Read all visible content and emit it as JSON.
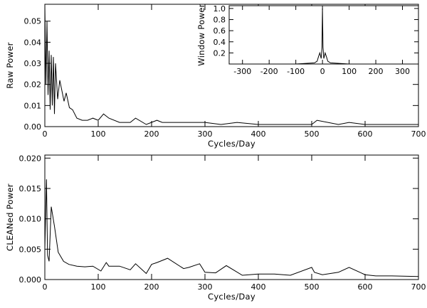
{
  "chart_data": [
    {
      "id": "top",
      "type": "line",
      "xlabel": "Cycles/Day",
      "ylabel": "Raw Power",
      "xlim": [
        0,
        700
      ],
      "ylim": [
        0,
        0.058
      ],
      "xticks": [
        0,
        100,
        200,
        300,
        400,
        500,
        600,
        700
      ],
      "yticks": [
        0.0,
        0.01,
        0.02,
        0.03,
        0.04,
        0.05
      ],
      "ytick_labels": [
        "0.00",
        "0.01",
        "0.02",
        "0.03",
        "0.04",
        "0.05"
      ],
      "series": [
        {
          "x": [
            0,
            2,
            4,
            6,
            8,
            10,
            12,
            14,
            16,
            18,
            20,
            24,
            28,
            32,
            36,
            40,
            46,
            52,
            60,
            70,
            80,
            90,
            100,
            110,
            120,
            140,
            160,
            170,
            190,
            210,
            220,
            250,
            280,
            300,
            330,
            360,
            400,
            450,
            500,
            510,
            550,
            570,
            600,
            650,
            700
          ],
          "y": [
            0.058,
            0.02,
            0.05,
            0.015,
            0.036,
            0.008,
            0.034,
            0.01,
            0.033,
            0.006,
            0.03,
            0.013,
            0.022,
            0.017,
            0.012,
            0.016,
            0.009,
            0.008,
            0.004,
            0.003,
            0.003,
            0.004,
            0.003,
            0.006,
            0.004,
            0.002,
            0.002,
            0.004,
            0.001,
            0.003,
            0.002,
            0.002,
            0.002,
            0.002,
            0.001,
            0.002,
            0.001,
            0.001,
            0.001,
            0.003,
            0.001,
            0.002,
            0.001,
            0.001,
            0.001
          ]
        }
      ]
    },
    {
      "id": "inset",
      "type": "line",
      "ylabel": "Window Power",
      "xlim": [
        -350,
        360
      ],
      "ylim": [
        0,
        1.05
      ],
      "xticks": [
        -300,
        -200,
        -100,
        0,
        100,
        200,
        300
      ],
      "xtick_labels": [
        "-300",
        "-200",
        "-100",
        "0",
        "100",
        "200",
        "300"
      ],
      "yticks": [
        0.2,
        0.4,
        0.6,
        0.8,
        1.0
      ],
      "ytick_labels": [
        "0.2",
        "0.4",
        "0.6",
        "0.8",
        "1.0"
      ],
      "series": [
        {
          "x": [
            -350,
            -100,
            -30,
            -20,
            -15,
            -10,
            -5,
            -2,
            0,
            2,
            5,
            10,
            15,
            20,
            30,
            100,
            360
          ],
          "y": [
            0.0,
            0.0,
            0.02,
            0.05,
            0.13,
            0.2,
            0.1,
            0.3,
            1.0,
            0.3,
            0.1,
            0.2,
            0.13,
            0.05,
            0.02,
            0.0,
            0.0
          ]
        }
      ]
    },
    {
      "id": "bottom",
      "type": "line",
      "xlabel": "Cycles/Day",
      "ylabel": "CLEANed Power",
      "xlim": [
        0,
        700
      ],
      "ylim": [
        0,
        0.0205
      ],
      "xticks": [
        0,
        100,
        200,
        300,
        400,
        500,
        600,
        700
      ],
      "yticks": [
        0.0,
        0.005,
        0.01,
        0.015,
        0.02
      ],
      "ytick_labels": [
        "0.000",
        "0.005",
        "0.010",
        "0.015",
        "0.020"
      ],
      "series": [
        {
          "x": [
            0,
            3,
            5,
            8,
            12,
            18,
            25,
            35,
            45,
            60,
            75,
            90,
            105,
            115,
            120,
            140,
            160,
            170,
            190,
            200,
            210,
            230,
            260,
            270,
            290,
            300,
            320,
            340,
            370,
            400,
            430,
            460,
            500,
            505,
            520,
            550,
            570,
            600,
            620,
            650,
            700
          ],
          "y": [
            0.005,
            0.0165,
            0.004,
            0.003,
            0.012,
            0.0088,
            0.0045,
            0.003,
            0.0025,
            0.0022,
            0.0021,
            0.0022,
            0.0014,
            0.0028,
            0.0022,
            0.0022,
            0.0016,
            0.0026,
            0.001,
            0.0025,
            0.0028,
            0.0035,
            0.0018,
            0.002,
            0.0026,
            0.0012,
            0.0011,
            0.0023,
            0.0007,
            0.0009,
            0.0009,
            0.0007,
            0.002,
            0.0012,
            0.0008,
            0.0012,
            0.002,
            0.0008,
            0.0006,
            0.0006,
            0.0005
          ]
        }
      ]
    }
  ]
}
